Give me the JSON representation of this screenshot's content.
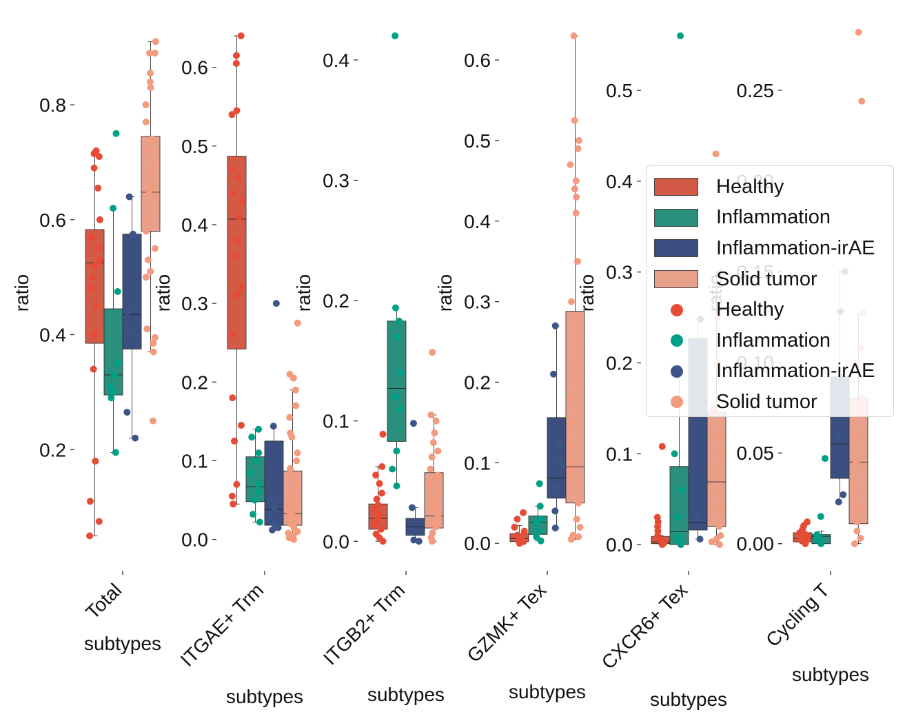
{
  "chart_data": {
    "type": "box",
    "ylabel": "ratio",
    "xlabel": "subtypes",
    "groups": [
      "Healthy",
      "Inflammation",
      "Inflammation-irAE",
      "Solid tumor"
    ],
    "colors": {
      "Healthy": "#d45a48",
      "Inflammation": "#2a8f7c",
      "Inflammation-irAE": "#3b5080",
      "Solid tumor": "#e8a08a"
    },
    "point_colors": {
      "Healthy": "#e64b35",
      "Inflammation": "#00a087",
      "Inflammation-irAE": "#3c5488",
      "Solid tumor": "#f39b7f"
    },
    "legend": {
      "location": "center-right",
      "box_entries": [
        "Healthy",
        "Inflammation",
        "Inflammation-irAE",
        "Solid tumor"
      ],
      "point_entries": [
        "Healthy",
        "Inflammation",
        "Inflammation-irAE",
        "Solid tumor"
      ]
    },
    "panels": [
      {
        "category": "Total",
        "ylim": [
          0.03,
          0.92
        ],
        "yticks": [
          0.2,
          0.4,
          0.6,
          0.8
        ],
        "ytick_labels": [
          "0.2",
          "0.4",
          "0.6",
          "0.8"
        ],
        "boxes": [
          {
            "group": "Healthy",
            "q1": 0.385,
            "median": 0.525,
            "q3": 0.583,
            "whislo": 0.05,
            "whishi": 0.72,
            "points": [
              0.05,
              0.075,
              0.11,
              0.18,
              0.34,
              0.4,
              0.45,
              0.48,
              0.5,
              0.52,
              0.53,
              0.55,
              0.57,
              0.6,
              0.655,
              0.69,
              0.71,
              0.715,
              0.72
            ]
          },
          {
            "group": "Inflammation",
            "q1": 0.295,
            "median": 0.33,
            "q3": 0.445,
            "whislo": 0.195,
            "whishi": 0.62,
            "points": [
              0.195,
              0.29,
              0.3,
              0.31,
              0.33,
              0.35,
              0.475,
              0.62,
              0.75
            ]
          },
          {
            "group": "Inflammation-irAE",
            "q1": 0.375,
            "median": 0.435,
            "q3": 0.575,
            "whislo": 0.22,
            "whishi": 0.64,
            "points": [
              0.22,
              0.265,
              0.41,
              0.44,
              0.575,
              0.64
            ]
          },
          {
            "group": "Solid tumor",
            "q1": 0.58,
            "median": 0.648,
            "q3": 0.745,
            "whislo": 0.37,
            "whishi": 0.91,
            "points": [
              0.25,
              0.37,
              0.385,
              0.395,
              0.41,
              0.5,
              0.51,
              0.53,
              0.55,
              0.58,
              0.6,
              0.62,
              0.64,
              0.65,
              0.66,
              0.68,
              0.7,
              0.72,
              0.74,
              0.77,
              0.8,
              0.83,
              0.84,
              0.855,
              0.89,
              0.89,
              0.91
            ]
          }
        ]
      },
      {
        "category": "ITGAE+ Trm",
        "ylim": [
          -0.01,
          0.64
        ],
        "yticks": [
          0.0,
          0.1,
          0.2,
          0.3,
          0.4,
          0.5,
          0.6
        ],
        "ytick_labels": [
          "0.0",
          "0.1",
          "0.2",
          "0.3",
          "0.4",
          "0.5",
          "0.6"
        ],
        "boxes": [
          {
            "group": "Healthy",
            "q1": 0.242,
            "median": 0.407,
            "q3": 0.487,
            "whislo": 0.045,
            "whishi": 0.64,
            "points": [
              0.045,
              0.055,
              0.07,
              0.125,
              0.145,
              0.18,
              0.26,
              0.31,
              0.32,
              0.36,
              0.38,
              0.41,
              0.43,
              0.44,
              0.46,
              0.47,
              0.54,
              0.545,
              0.605,
              0.615,
              0.64
            ]
          },
          {
            "group": "Inflammation",
            "q1": 0.048,
            "median": 0.067,
            "q3": 0.105,
            "whislo": 0.022,
            "whishi": 0.14,
            "points": [
              0.022,
              0.032,
              0.05,
              0.06,
              0.07,
              0.085,
              0.1,
              0.11,
              0.13,
              0.14
            ]
          },
          {
            "group": "Inflammation-irAE",
            "q1": 0.018,
            "median": 0.038,
            "q3": 0.125,
            "whislo": 0.012,
            "whishi": 0.144,
            "points": [
              0.012,
              0.015,
              0.02,
              0.03,
              0.04,
              0.05,
              0.144,
              0.3
            ]
          },
          {
            "group": "Solid tumor",
            "q1": 0.018,
            "median": 0.033,
            "q3": 0.087,
            "whislo": 0.0,
            "whishi": 0.19,
            "points": [
              0.0,
              0.002,
              0.005,
              0.008,
              0.01,
              0.015,
              0.02,
              0.025,
              0.03,
              0.035,
              0.04,
              0.045,
              0.05,
              0.06,
              0.07,
              0.08,
              0.09,
              0.1,
              0.11,
              0.13,
              0.135,
              0.155,
              0.17,
              0.19,
              0.205,
              0.21,
              0.275
            ]
          }
        ]
      },
      {
        "category": "ITGB2+ Trm",
        "ylim": [
          -0.005,
          0.42
        ],
        "yticks": [
          0.0,
          0.1,
          0.2,
          0.3,
          0.4
        ],
        "ytick_labels": [
          "0.0",
          "0.1",
          "0.2",
          "0.3",
          "0.4"
        ],
        "boxes": [
          {
            "group": "Healthy",
            "q1": 0.01,
            "median": 0.019,
            "q3": 0.031,
            "whislo": 0.0,
            "whishi": 0.062,
            "points": [
              0.0,
              0.003,
              0.006,
              0.01,
              0.014,
              0.018,
              0.022,
              0.026,
              0.03,
              0.035,
              0.04,
              0.048,
              0.055,
              0.062,
              0.089
            ]
          },
          {
            "group": "Inflammation",
            "q1": 0.083,
            "median": 0.127,
            "q3": 0.183,
            "whislo": 0.046,
            "whishi": 0.194,
            "points": [
              0.046,
              0.06,
              0.075,
              0.11,
              0.12,
              0.14,
              0.17,
              0.183,
              0.194,
              0.42
            ]
          },
          {
            "group": "Inflammation-irAE",
            "q1": 0.005,
            "median": 0.012,
            "q3": 0.019,
            "whislo": 0.0,
            "whishi": 0.028,
            "points": [
              0.0,
              0.001,
              0.028,
              0.098
            ]
          },
          {
            "group": "Solid tumor",
            "q1": 0.011,
            "median": 0.021,
            "q3": 0.057,
            "whislo": 0.0,
            "whishi": 0.105,
            "points": [
              0.0,
              0.003,
              0.007,
              0.012,
              0.016,
              0.02,
              0.025,
              0.03,
              0.035,
              0.04,
              0.045,
              0.05,
              0.055,
              0.06,
              0.07,
              0.075,
              0.082,
              0.09,
              0.1,
              0.105,
              0.157
            ]
          }
        ]
      },
      {
        "category": "GZMK+ Tex",
        "ylim": [
          -0.005,
          0.63
        ],
        "yticks": [
          0.0,
          0.1,
          0.2,
          0.3,
          0.4,
          0.5,
          0.6
        ],
        "ytick_labels": [
          "0.0",
          "0.1",
          "0.2",
          "0.3",
          "0.4",
          "0.5",
          "0.6"
        ],
        "boxes": [
          {
            "group": "Healthy",
            "q1": 0.002,
            "median": 0.006,
            "q3": 0.012,
            "whislo": 0.0,
            "whishi": 0.022,
            "points": [
              0.0,
              0.002,
              0.004,
              0.006,
              0.01,
              0.015,
              0.02,
              0.03,
              0.038
            ]
          },
          {
            "group": "Inflammation",
            "q1": 0.011,
            "median": 0.026,
            "q3": 0.034,
            "whislo": 0.003,
            "whishi": 0.046,
            "points": [
              0.003,
              0.008,
              0.015,
              0.025,
              0.03,
              0.046,
              0.074
            ]
          },
          {
            "group": "Inflammation-irAE",
            "q1": 0.056,
            "median": 0.081,
            "q3": 0.156,
            "whislo": 0.019,
            "whishi": 0.27,
            "points": [
              0.019,
              0.04,
              0.07,
              0.1,
              0.12,
              0.21,
              0.27
            ]
          },
          {
            "group": "Solid tumor",
            "q1": 0.05,
            "median": 0.095,
            "q3": 0.288,
            "whislo": 0.005,
            "whishi": 0.63,
            "points": [
              0.005,
              0.008,
              0.01,
              0.02,
              0.03,
              0.05,
              0.07,
              0.09,
              0.1,
              0.12,
              0.15,
              0.18,
              0.2,
              0.22,
              0.25,
              0.28,
              0.3,
              0.35,
              0.41,
              0.43,
              0.44,
              0.45,
              0.47,
              0.49,
              0.5,
              0.525,
              0.63
            ]
          }
        ]
      },
      {
        "category": "CXCR6+ Tex",
        "ylim": [
          -0.003,
          0.56
        ],
        "yticks": [
          0.0,
          0.1,
          0.2,
          0.3,
          0.4,
          0.5
        ],
        "ytick_labels": [
          "0.0",
          "0.1",
          "0.2",
          "0.3",
          "0.4",
          "0.5"
        ],
        "boxes": [
          {
            "group": "Healthy",
            "q1": 0.001,
            "median": 0.003,
            "q3": 0.009,
            "whislo": 0.0,
            "whishi": 0.01,
            "points": [
              0.0,
              0.002,
              0.005,
              0.01,
              0.015,
              0.02,
              0.025,
              0.03,
              0.108
            ]
          },
          {
            "group": "Inflammation",
            "q1": 0.0,
            "median": 0.014,
            "q3": 0.086,
            "whislo": 0.0,
            "whishi": 0.19,
            "points": [
              0.0,
              0.005,
              0.01,
              0.03,
              0.06,
              0.1,
              0.19,
              0.56
            ]
          },
          {
            "group": "Inflammation-irAE",
            "q1": 0.016,
            "median": 0.024,
            "q3": 0.227,
            "whislo": 0.006,
            "whishi": 0.248,
            "points": [
              0.006,
              0.03,
              0.248
            ]
          },
          {
            "group": "Solid tumor",
            "q1": 0.02,
            "median": 0.069,
            "q3": 0.146,
            "whislo": 0.0,
            "whishi": 0.3,
            "points": [
              0.0,
              0.003,
              0.006,
              0.01,
              0.02,
              0.04,
              0.06,
              0.08,
              0.1,
              0.12,
              0.15,
              0.2,
              0.25,
              0.3,
              0.43
            ]
          }
        ]
      },
      {
        "category": "Cycling T",
        "ylim": [
          -0.002,
          0.28
        ],
        "yticks": [
          0.0,
          0.05,
          0.1,
          0.15,
          0.2,
          0.25
        ],
        "ytick_labels": [
          "0.00",
          "0.05",
          "0.10",
          "0.15",
          "0.20",
          "0.25"
        ],
        "boxes": [
          {
            "group": "Healthy",
            "q1": 0.001,
            "median": 0.003,
            "q3": 0.006,
            "whislo": 0.0,
            "whishi": 0.01,
            "points": [
              0.0,
              0.001,
              0.002,
              0.003,
              0.004,
              0.005,
              0.006,
              0.008,
              0.01,
              0.012
            ]
          },
          {
            "group": "Inflammation",
            "q1": 0.0,
            "median": 0.004,
            "q3": 0.005,
            "whislo": 0.0,
            "whishi": 0.007,
            "points": [
              0.0,
              0.002,
              0.004,
              0.005,
              0.015,
              0.047
            ]
          },
          {
            "group": "Inflammation-irAE",
            "q1": 0.036,
            "median": 0.055,
            "q3": 0.092,
            "whislo": 0.023,
            "whishi": 0.15,
            "points": [
              0.023,
              0.027,
              0.06,
              0.128,
              0.15
            ]
          },
          {
            "group": "Solid tumor",
            "q1": 0.011,
            "median": 0.045,
            "q3": 0.08,
            "whislo": 0.0,
            "whishi": 0.127,
            "points": [
              0.0,
              0.003,
              0.007,
              0.012,
              0.02,
              0.03,
              0.045,
              0.06,
              0.08,
              0.1,
              0.108,
              0.127,
              0.244,
              0.282
            ]
          }
        ]
      }
    ]
  }
}
